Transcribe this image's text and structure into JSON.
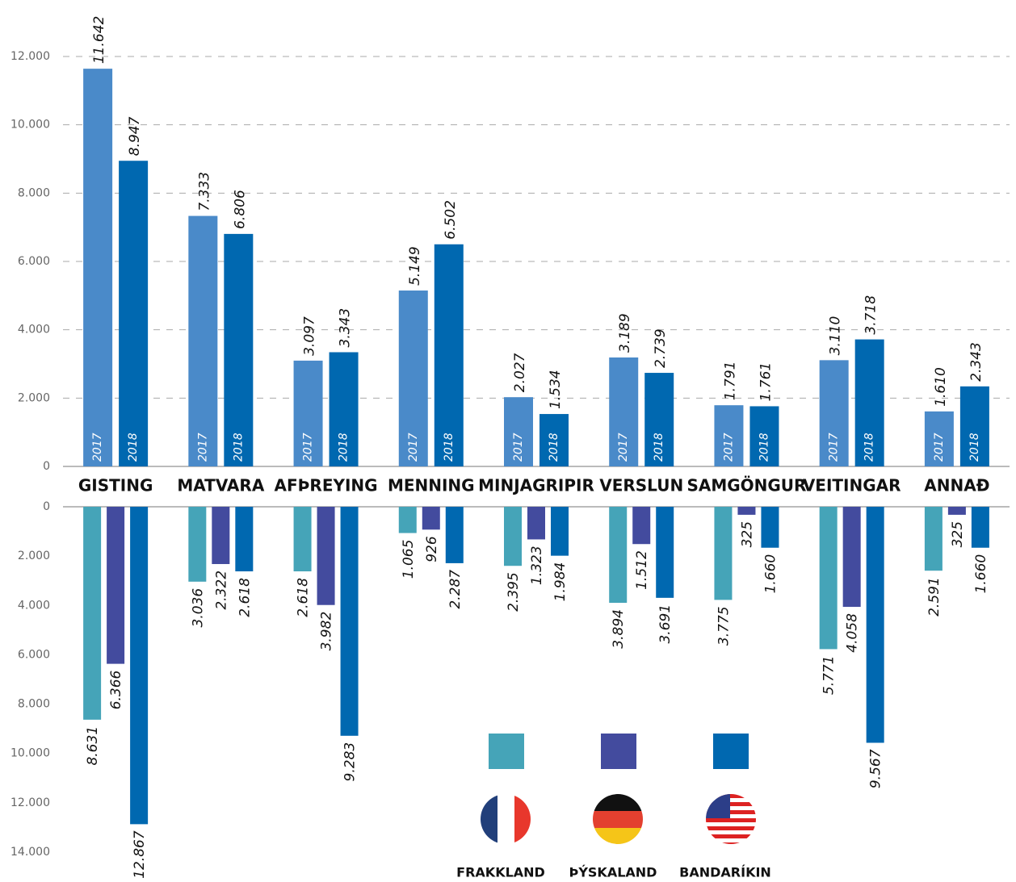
{
  "chart_data": [
    {
      "type": "bar",
      "categories": [
        "GISTING",
        "MATVARA",
        "AFÞREYING",
        "MENNING",
        "MINJAGRIPIR",
        "VERSLUN",
        "SAMGÖNGUR",
        "VEITINGAR",
        "ANNAÐ"
      ],
      "series": [
        {
          "name": "2017",
          "color": "#4a8ac9",
          "values": [
            11642,
            7333,
            3097,
            5149,
            2027,
            3189,
            1791,
            3110,
            1610
          ],
          "value_labels": [
            "11.642",
            "7.333",
            "3.097",
            "5.149",
            "2.027",
            "3.189",
            "1.791",
            "3.110",
            "1.610"
          ]
        },
        {
          "name": "2018",
          "color": "#0068b0",
          "values": [
            8947,
            6806,
            3343,
            6502,
            1534,
            2739,
            1761,
            3718,
            2343
          ],
          "value_labels": [
            "8.947",
            "6.806",
            "3.343",
            "6.502",
            "1.534",
            "2.739",
            "1.761",
            "3.718",
            "2.343"
          ]
        }
      ],
      "ylim": [
        0,
        12000
      ],
      "yticks": [
        0,
        {
          "value": 2000,
          "label": "2.000"
        },
        {
          "value": 4000,
          "label": "4.000"
        },
        {
          "value": 6000,
          "label": "6.000"
        },
        {
          "value": 8000,
          "label": "8.000"
        },
        {
          "value": 10000,
          "label": "10.000"
        },
        {
          "value": 12000,
          "label": "12.000"
        }
      ],
      "grid": true
    },
    {
      "type": "bar",
      "series": [
        {
          "name": "FRAKKLAND",
          "color": "#45a4b8",
          "values": [
            8631,
            3036,
            2618,
            1065,
            2395,
            3894,
            3775,
            5771,
            2591
          ],
          "value_labels": [
            "8.631",
            "3.036",
            "2.618",
            "1.065",
            "2.395",
            "3.894",
            "3.775",
            "5.771",
            "2.591"
          ]
        },
        {
          "name": "ÞÝSKALAND",
          "color": "#434b9e",
          "values": [
            6366,
            2322,
            3982,
            926,
            1323,
            1512,
            325,
            4058,
            325
          ],
          "value_labels": [
            "6.366",
            "2.322",
            "3.982",
            "926",
            "1.323",
            "1.512",
            "325",
            "4.058",
            "325"
          ]
        },
        {
          "name": "BANDARÍKIN",
          "color": "#0068b0",
          "values": [
            12867,
            2618,
            9283,
            2287,
            1984,
            3691,
            1660,
            9567,
            1660
          ],
          "value_labels": [
            "12.867",
            "2.618",
            "9.283",
            "2.287",
            "1.984",
            "3.691",
            "1.660",
            "9.567",
            "1.660"
          ]
        }
      ],
      "ylim": [
        0,
        14000
      ],
      "inverted": true,
      "yticks": [
        0,
        {
          "value": 2000,
          "label": "2.000"
        },
        {
          "value": 4000,
          "label": "4.000"
        },
        {
          "value": 6000,
          "label": "6.000"
        },
        {
          "value": 8000,
          "label": "8.000"
        },
        {
          "value": 10000,
          "label": "10.000"
        },
        {
          "value": 12000,
          "label": "12.000"
        },
        {
          "value": 14000,
          "label": "14.000"
        }
      ]
    }
  ]
}
